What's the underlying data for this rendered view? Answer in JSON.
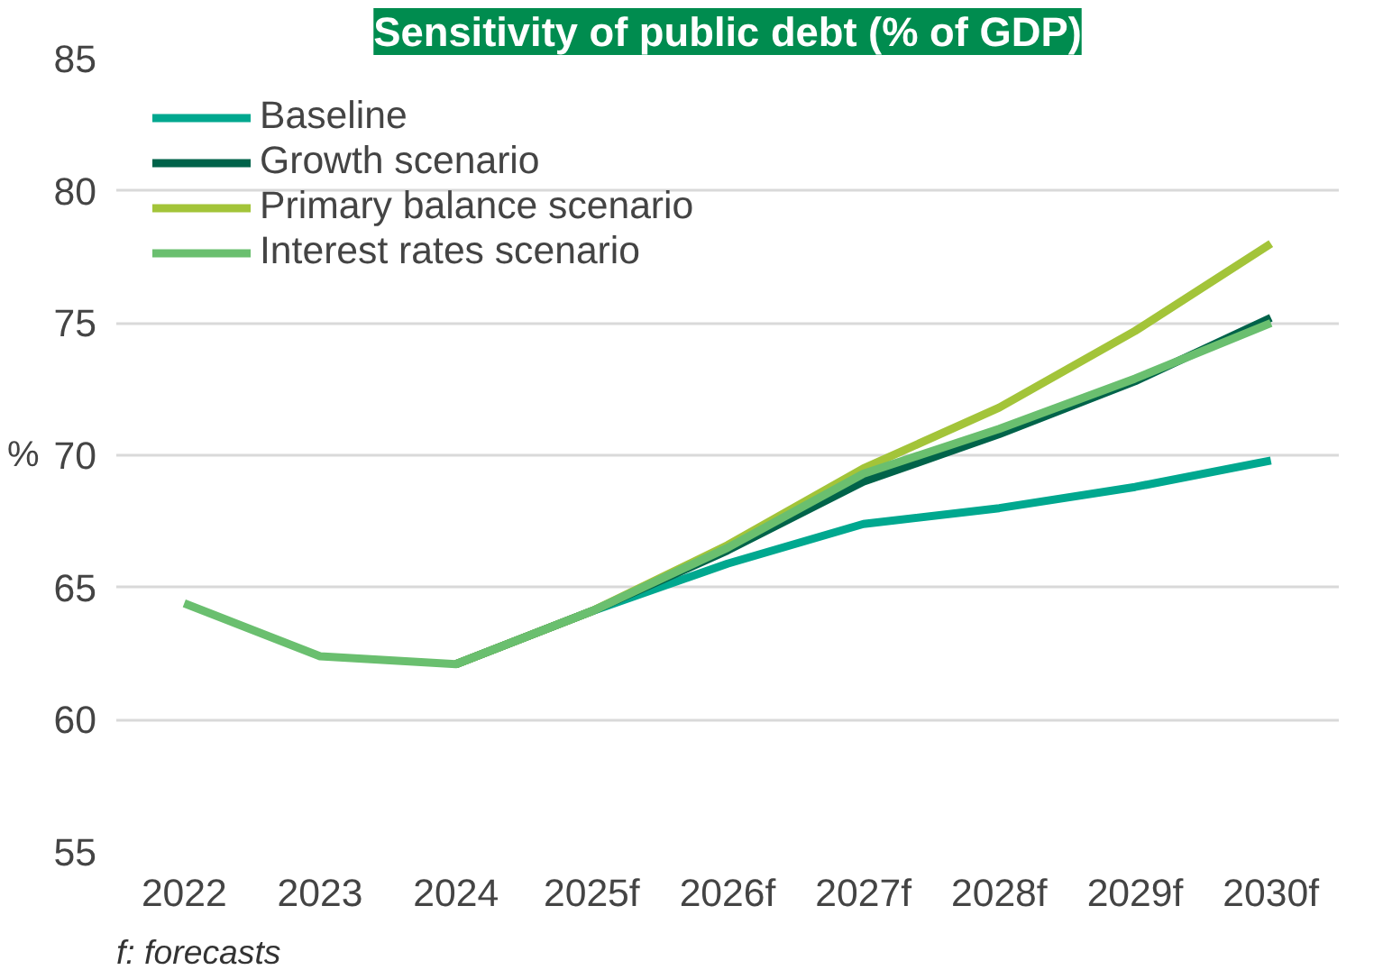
{
  "chart_data": {
    "type": "line",
    "title": "Sensitivity of public debt (% of GDP)",
    "ylabel": "%",
    "categories": [
      "2022",
      "2023",
      "2024",
      "2025f",
      "2026f",
      "2027f",
      "2028f",
      "2029f",
      "2030f"
    ],
    "series": [
      {
        "name": "Baseline",
        "color": "#00a88f",
        "values": [
          null,
          null,
          62.1,
          64.1,
          65.9,
          67.4,
          68.0,
          68.8,
          69.8
        ]
      },
      {
        "name": "Growth scenario",
        "color": "#00634a",
        "values": [
          null,
          null,
          62.1,
          64.1,
          66.4,
          69.0,
          70.8,
          72.8,
          75.2
        ]
      },
      {
        "name": "Primary balance scenario",
        "color": "#a3c439",
        "values": [
          null,
          null,
          62.1,
          64.1,
          66.6,
          69.5,
          71.8,
          74.7,
          78.0
        ]
      },
      {
        "name": "Interest rates scenario",
        "color": "#6abf6f",
        "values": [
          64.4,
          62.4,
          62.1,
          64.1,
          66.5,
          69.3,
          71.0,
          72.9,
          75.0
        ]
      }
    ],
    "ylim": [
      55,
      85
    ],
    "yticks": [
      55,
      60,
      65,
      70,
      75,
      80,
      85
    ],
    "grid": "y",
    "legend": "top left",
    "marker": "none",
    "line_style": "solid",
    "annotations": [
      "f: forecasts"
    ]
  }
}
